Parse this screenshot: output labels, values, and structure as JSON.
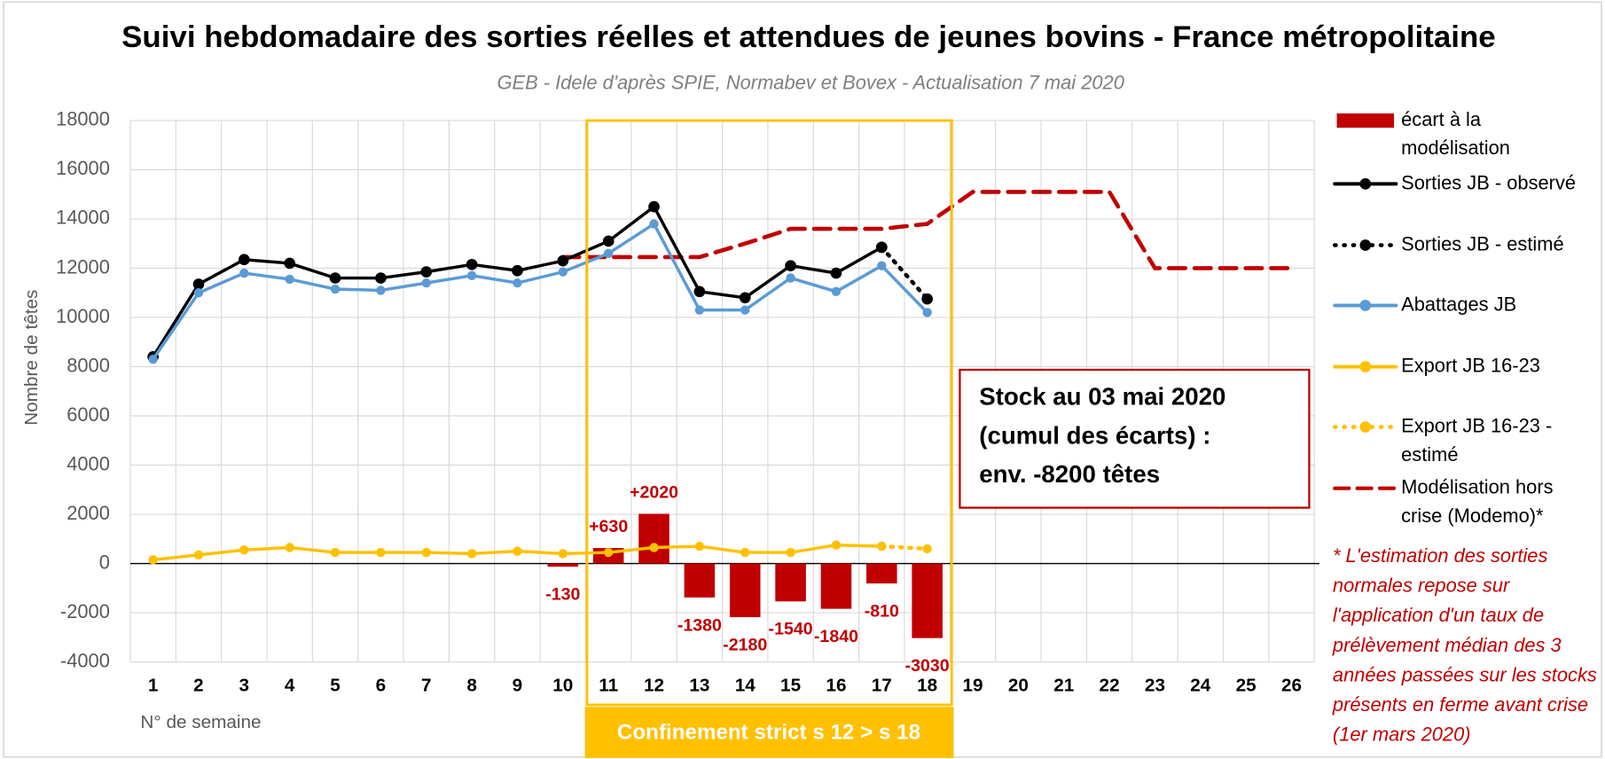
{
  "chart_data": {
    "type": "combo",
    "title": "Suivi hebdomadaire des sorties réelles et attendues de jeunes bovins - France métropolitaine",
    "subtitle": "GEB - Idele d'après SPIE, Normabev et Bovex - Actualisation 7 mai 2020",
    "y_label": "Nombre de têtes",
    "x_label": "N° de semaine",
    "categories": [
      "1",
      "2",
      "3",
      "4",
      "5",
      "6",
      "7",
      "8",
      "9",
      "10",
      "11",
      "12",
      "13",
      "14",
      "15",
      "16",
      "17",
      "18",
      "19",
      "20",
      "21",
      "22",
      "23",
      "24",
      "25",
      "26"
    ],
    "ylim": [
      -4000,
      18000
    ],
    "yticks": [
      -4000,
      -2000,
      0,
      2000,
      4000,
      6000,
      8000,
      10000,
      12000,
      14000,
      16000,
      18000
    ],
    "grid": true,
    "legend": "right",
    "series": [
      {
        "name": "écart à la modélisation",
        "type": "bar",
        "color": "#c00000",
        "values": [
          null,
          null,
          null,
          null,
          null,
          null,
          null,
          null,
          null,
          -130,
          630,
          2020,
          -1380,
          -2180,
          -1540,
          -1840,
          -810,
          -3030,
          null,
          null,
          null,
          null,
          null,
          null,
          null,
          null
        ],
        "value_labels": [
          null,
          null,
          null,
          null,
          null,
          null,
          null,
          null,
          null,
          "-130",
          "+630",
          "+2020",
          "-1380",
          "-2180",
          "-1540",
          "-1840",
          "-810",
          "-3030",
          null,
          null,
          null,
          null,
          null,
          null,
          null,
          null
        ]
      },
      {
        "name": "Sorties JB - observé",
        "type": "line",
        "style": "solid",
        "marker": true,
        "color": "#000000",
        "values": [
          8400,
          11350,
          12350,
          12200,
          11600,
          11600,
          11850,
          12150,
          11900,
          12300,
          13100,
          14500,
          11050,
          10800,
          12100,
          11800,
          12850,
          null,
          null,
          null,
          null,
          null,
          null,
          null,
          null,
          null
        ]
      },
      {
        "name": "Sorties JB - estimé",
        "type": "line",
        "style": "dotted",
        "marker": true,
        "color": "#000000",
        "values": [
          null,
          null,
          null,
          null,
          null,
          null,
          null,
          null,
          null,
          null,
          null,
          null,
          null,
          null,
          null,
          null,
          12850,
          10750,
          null,
          null,
          null,
          null,
          null,
          null,
          null,
          null
        ]
      },
      {
        "name": "Abattages JB",
        "type": "line",
        "style": "solid",
        "marker": true,
        "color": "#5b9bd5",
        "values": [
          8300,
          11000,
          11800,
          11550,
          11150,
          11100,
          11400,
          11700,
          11400,
          11850,
          12600,
          13800,
          10300,
          10300,
          11600,
          11050,
          12100,
          10200,
          null,
          null,
          null,
          null,
          null,
          null,
          null,
          null
        ]
      },
      {
        "name": "Export JB 16-23",
        "type": "line",
        "style": "solid",
        "marker": true,
        "color": "#ffc000",
        "values": [
          150,
          350,
          550,
          650,
          450,
          450,
          450,
          400,
          500,
          400,
          450,
          650,
          700,
          450,
          450,
          750,
          700,
          null,
          null,
          null,
          null,
          null,
          null,
          null,
          null,
          null
        ]
      },
      {
        "name": "Export JB 16-23 - estimé",
        "type": "line",
        "style": "dotted",
        "marker": true,
        "color": "#ffc000",
        "values": [
          null,
          null,
          null,
          null,
          null,
          null,
          null,
          null,
          null,
          null,
          null,
          null,
          null,
          null,
          null,
          null,
          700,
          600,
          null,
          null,
          null,
          null,
          null,
          null,
          null,
          null
        ]
      },
      {
        "name": "Modélisation hors crise (Modemo)*",
        "type": "line",
        "style": "dashed",
        "marker": false,
        "color": "#c00000",
        "values": [
          null,
          null,
          null,
          null,
          null,
          null,
          null,
          null,
          null,
          12450,
          12450,
          12450,
          12450,
          13000,
          13600,
          13600,
          13600,
          13800,
          15100,
          15100,
          15100,
          15100,
          12000,
          12000,
          12000,
          12000
        ]
      }
    ],
    "period_label": "Confinement strict s 12 > s 18",
    "stock_box": [
      "Stock au 03 mai 2020",
      "(cumul des écarts) :",
      "env. -8200 têtes"
    ],
    "footnote": "* L'estimation des sorties normales repose sur l'application d'un taux de prélèvement médian des 3 années passées sur les stocks présents en ferme avant crise (1er mars 2020)"
  }
}
